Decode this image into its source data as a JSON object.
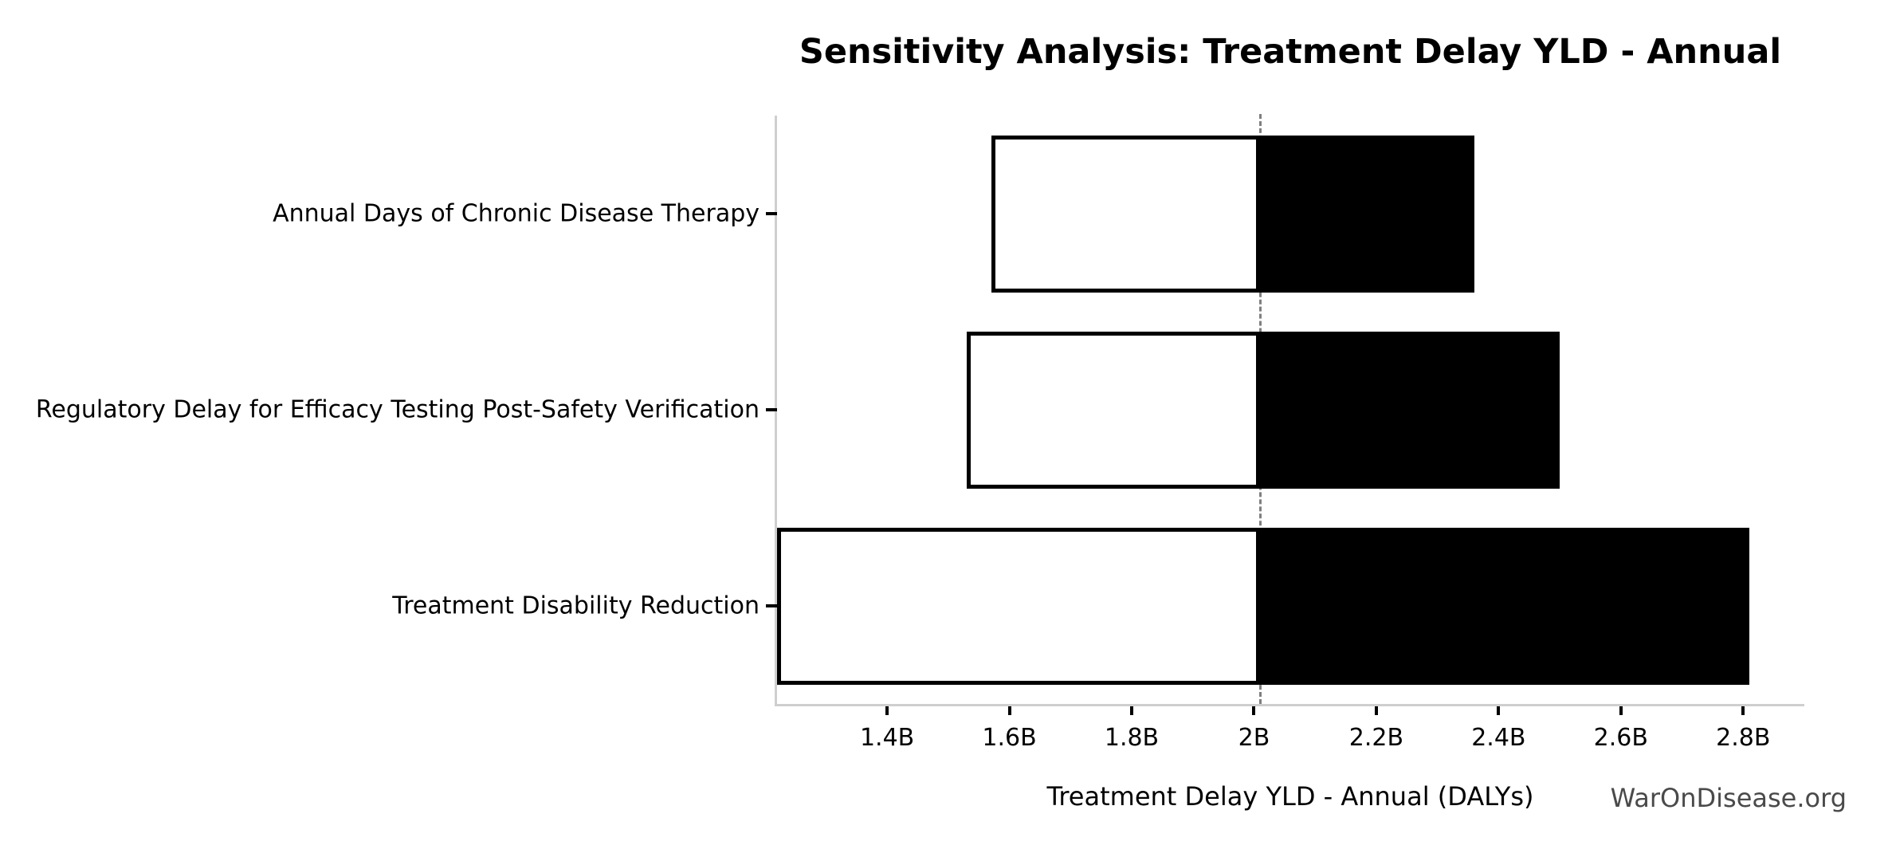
{
  "watermark": "WarOnDisease.org",
  "colors": {
    "low_segment_fill": "#ffffff",
    "high_segment_fill": "#000000",
    "bar_border": "#000000",
    "baseline_line": "#7f7f7f",
    "spine": "#cfcfcf",
    "watermark_text": "#4a4a4a"
  },
  "chart_data": {
    "type": "bar",
    "subtype": "tornado-sensitivity",
    "orientation": "horizontal",
    "title": "Sensitivity Analysis: Treatment Delay YLD - Annual",
    "xlabel": "Treatment Delay YLD - Annual (DALYs)",
    "ylabel": "",
    "unit": "B DALYs",
    "baseline": 2.01,
    "xlim": [
      1.22,
      2.9
    ],
    "grid": false,
    "legend": null,
    "baseline_style": "vertical gray dashed line",
    "xticks": [
      {
        "value": 1.4,
        "label": "1.4B"
      },
      {
        "value": 1.6,
        "label": "1.6B"
      },
      {
        "value": 1.8,
        "label": "1.8B"
      },
      {
        "value": 2.0,
        "label": "2B"
      },
      {
        "value": 2.2,
        "label": "2.2B"
      },
      {
        "value": 2.4,
        "label": "2.4B"
      },
      {
        "value": 2.6,
        "label": "2.6B"
      },
      {
        "value": 2.8,
        "label": "2.8B"
      }
    ],
    "bars": [
      {
        "category": "Annual Days of Chronic Disease Therapy",
        "low": 1.57,
        "high": 2.36
      },
      {
        "category": "Regulatory Delay for Efficacy Testing Post-Safety Verification",
        "low": 1.53,
        "high": 2.5
      },
      {
        "category": "Treatment Disability Reduction",
        "low": 1.22,
        "high": 2.81
      }
    ]
  }
}
